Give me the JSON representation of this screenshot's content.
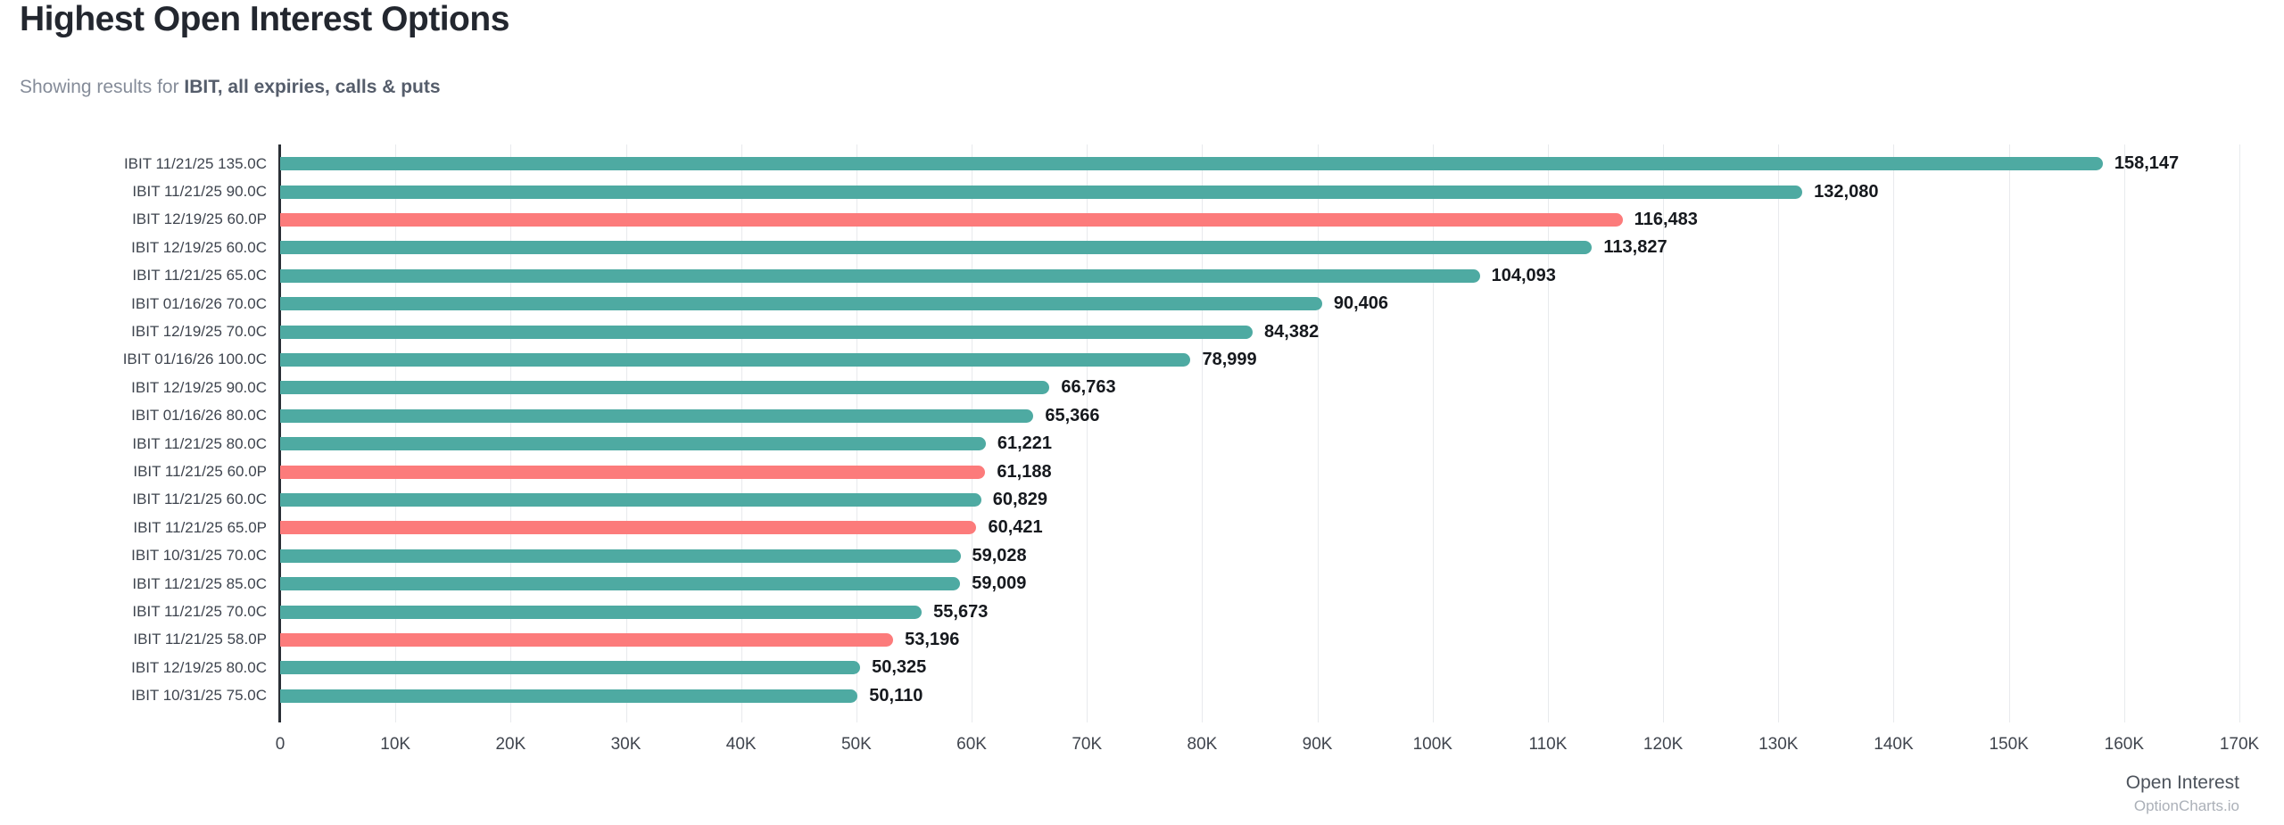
{
  "header": {
    "title": "Highest Open Interest Options",
    "subtitle_prefix": "Showing results for ",
    "subtitle_bold": "IBIT, all expiries, calls & puts"
  },
  "chart_data": {
    "type": "bar",
    "orientation": "horizontal",
    "title": "Highest Open Interest Options",
    "xlabel": "Open Interest",
    "ylabel": "",
    "xlim": [
      0,
      170000
    ],
    "grid": true,
    "legend_position": "none",
    "colors": {
      "call": "#4EAAA2",
      "put": "#FC7B7B"
    },
    "x_ticks": [
      {
        "value": 0,
        "label": "0"
      },
      {
        "value": 10000,
        "label": "10K"
      },
      {
        "value": 20000,
        "label": "20K"
      },
      {
        "value": 30000,
        "label": "30K"
      },
      {
        "value": 40000,
        "label": "40K"
      },
      {
        "value": 50000,
        "label": "50K"
      },
      {
        "value": 60000,
        "label": "60K"
      },
      {
        "value": 70000,
        "label": "70K"
      },
      {
        "value": 80000,
        "label": "80K"
      },
      {
        "value": 90000,
        "label": "90K"
      },
      {
        "value": 100000,
        "label": "100K"
      },
      {
        "value": 110000,
        "label": "110K"
      },
      {
        "value": 120000,
        "label": "120K"
      },
      {
        "value": 130000,
        "label": "130K"
      },
      {
        "value": 140000,
        "label": "140K"
      },
      {
        "value": 150000,
        "label": "150K"
      },
      {
        "value": 160000,
        "label": "160K"
      },
      {
        "value": 170000,
        "label": "170K"
      }
    ],
    "bars": [
      {
        "label": "IBIT 11/21/25 135.0C",
        "type": "call",
        "value": 158147,
        "value_label": "158,147"
      },
      {
        "label": "IBIT 11/21/25 90.0C",
        "type": "call",
        "value": 132080,
        "value_label": "132,080"
      },
      {
        "label": "IBIT 12/19/25 60.0P",
        "type": "put",
        "value": 116483,
        "value_label": "116,483"
      },
      {
        "label": "IBIT 12/19/25 60.0C",
        "type": "call",
        "value": 113827,
        "value_label": "113,827"
      },
      {
        "label": "IBIT 11/21/25 65.0C",
        "type": "call",
        "value": 104093,
        "value_label": "104,093"
      },
      {
        "label": "IBIT 01/16/26 70.0C",
        "type": "call",
        "value": 90406,
        "value_label": "90,406"
      },
      {
        "label": "IBIT 12/19/25 70.0C",
        "type": "call",
        "value": 84382,
        "value_label": "84,382"
      },
      {
        "label": "IBIT 01/16/26 100.0C",
        "type": "call",
        "value": 78999,
        "value_label": "78,999"
      },
      {
        "label": "IBIT 12/19/25 90.0C",
        "type": "call",
        "value": 66763,
        "value_label": "66,763"
      },
      {
        "label": "IBIT 01/16/26 80.0C",
        "type": "call",
        "value": 65366,
        "value_label": "65,366"
      },
      {
        "label": "IBIT 11/21/25 80.0C",
        "type": "call",
        "value": 61221,
        "value_label": "61,221"
      },
      {
        "label": "IBIT 11/21/25 60.0P",
        "type": "put",
        "value": 61188,
        "value_label": "61,188"
      },
      {
        "label": "IBIT 11/21/25 60.0C",
        "type": "call",
        "value": 60829,
        "value_label": "60,829"
      },
      {
        "label": "IBIT 11/21/25 65.0P",
        "type": "put",
        "value": 60421,
        "value_label": "60,421"
      },
      {
        "label": "IBIT 10/31/25 70.0C",
        "type": "call",
        "value": 59028,
        "value_label": "59,028"
      },
      {
        "label": "IBIT 11/21/25 85.0C",
        "type": "call",
        "value": 59009,
        "value_label": "59,009"
      },
      {
        "label": "IBIT 11/21/25 70.0C",
        "type": "call",
        "value": 55673,
        "value_label": "55,673"
      },
      {
        "label": "IBIT 11/21/25 58.0P",
        "type": "put",
        "value": 53196,
        "value_label": "53,196"
      },
      {
        "label": "IBIT 12/19/25 80.0C",
        "type": "call",
        "value": 50325,
        "value_label": "50,325"
      },
      {
        "label": "IBIT 10/31/25 75.0C",
        "type": "call",
        "value": 50110,
        "value_label": "50,110"
      }
    ]
  },
  "footer": {
    "axis_title": "Open Interest",
    "watermark": "OptionCharts.io"
  }
}
